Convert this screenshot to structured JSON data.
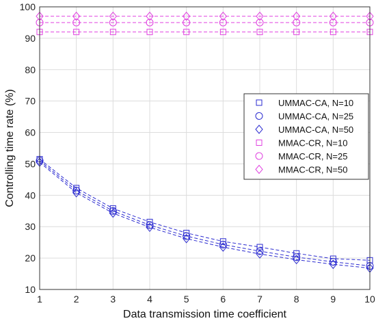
{
  "chart_data": {
    "type": "line",
    "title": "",
    "xlabel": "Data transmission time coefficient",
    "ylabel": "Controlling time rate (%)",
    "xlim": [
      1,
      10
    ],
    "ylim": [
      10,
      100
    ],
    "xticks": [
      "1",
      "2",
      "3",
      "4",
      "5",
      "6",
      "7",
      "8",
      "9",
      "10"
    ],
    "yticks": [
      "10",
      "20",
      "30",
      "40",
      "50",
      "60",
      "70",
      "80",
      "90",
      "100"
    ],
    "grid": true,
    "legend_position": "right",
    "x": [
      1,
      2,
      3,
      4,
      5,
      6,
      7,
      8,
      9,
      10
    ],
    "series": [
      {
        "name": "UMMAC-CA, N=10",
        "marker": "square",
        "color": "#2a2ad0",
        "values": [
          51.5,
          42.3,
          35.8,
          31.5,
          28.0,
          25.3,
          23.5,
          21.5,
          19.8,
          19.3
        ]
      },
      {
        "name": "UMMAC-CA, N=25",
        "marker": "circle",
        "color": "#2a2ad0",
        "values": [
          51.0,
          41.5,
          35.0,
          30.5,
          27.0,
          24.3,
          22.2,
          20.3,
          18.8,
          17.5
        ]
      },
      {
        "name": "UMMAC-CA, N=50",
        "marker": "diamond",
        "color": "#2a2ad0",
        "values": [
          50.5,
          40.8,
          34.3,
          29.8,
          26.2,
          23.5,
          21.3,
          19.5,
          18.0,
          16.8
        ]
      },
      {
        "name": "MMAC-CR, N=10",
        "marker": "square",
        "color": "#e040e0",
        "values": [
          92,
          92,
          92,
          92,
          92,
          92,
          92,
          92,
          92,
          92
        ]
      },
      {
        "name": "MMAC-CR, N=25",
        "marker": "circle",
        "color": "#e040e0",
        "values": [
          95,
          95,
          95,
          95,
          95,
          95,
          95,
          95,
          95,
          95
        ]
      },
      {
        "name": "MMAC-CR, N=50",
        "marker": "diamond",
        "color": "#e040e0",
        "values": [
          97,
          97,
          97,
          97,
          97,
          97,
          97,
          97,
          97,
          97
        ]
      }
    ]
  }
}
